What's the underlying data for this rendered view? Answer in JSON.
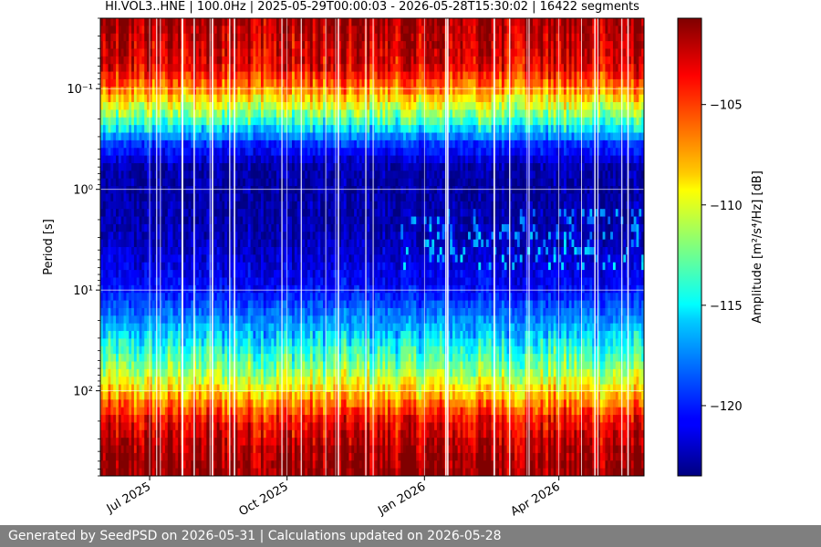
{
  "chart_data": {
    "type": "heatmap",
    "title": "HI.VOL3..HNE | 100.0Hz | 2025-05-29T00:00:03 - 2026-05-28T15:30:02 | 16422 segments",
    "ylabel": "Period [s]",
    "y_scale": "log",
    "y_inverted": true,
    "ylim": [
      0.02,
      700
    ],
    "y_ticks": [
      {
        "value": 0.1,
        "label": "10⁻¹"
      },
      {
        "value": 1,
        "label": "10⁰"
      },
      {
        "value": 10,
        "label": "10¹"
      },
      {
        "value": 100,
        "label": "10²"
      }
    ],
    "x_axis": "date",
    "xlim": [
      "2025-05-29",
      "2026-05-28"
    ],
    "x_ticks": [
      {
        "date": "2025-07-01",
        "label": "Jul 2025"
      },
      {
        "date": "2025-10-01",
        "label": "Oct 2025"
      },
      {
        "date": "2026-01-01",
        "label": "Jan 2026"
      },
      {
        "date": "2026-04-01",
        "label": "Apr 2026"
      }
    ],
    "grid": true,
    "colormap": "jet",
    "colorbar": {
      "label": "Amplitude [m²/s⁴/Hz] [dB]",
      "range": [
        -123.5,
        -100.7
      ],
      "ticks": [
        {
          "value": -105,
          "label": "−105"
        },
        {
          "value": -110,
          "label": "−110"
        },
        {
          "value": -115,
          "label": "−115"
        },
        {
          "value": -120,
          "label": "−120"
        }
      ]
    },
    "profile": [
      {
        "period": 0.02,
        "db": -101.5
      },
      {
        "period": 0.06,
        "db": -103.0
      },
      {
        "period": 0.1,
        "db": -106.5
      },
      {
        "period": 0.2,
        "db": -113.0
      },
      {
        "period": 0.35,
        "db": -119.5
      },
      {
        "period": 0.6,
        "db": -122.5
      },
      {
        "period": 1,
        "db": -122.8
      },
      {
        "period": 3,
        "db": -122.3
      },
      {
        "period": 10,
        "db": -120.5
      },
      {
        "period": 25,
        "db": -116.5
      },
      {
        "period": 60,
        "db": -112.0
      },
      {
        "period": 100,
        "db": -108.5
      },
      {
        "period": 200,
        "db": -103.5
      },
      {
        "period": 400,
        "db": -101.5
      },
      {
        "period": 700,
        "db": -101.0
      }
    ]
  },
  "footer": {
    "text": "Generated by SeedPSD on 2026-05-31 | Calculations updated on 2026-05-28"
  }
}
